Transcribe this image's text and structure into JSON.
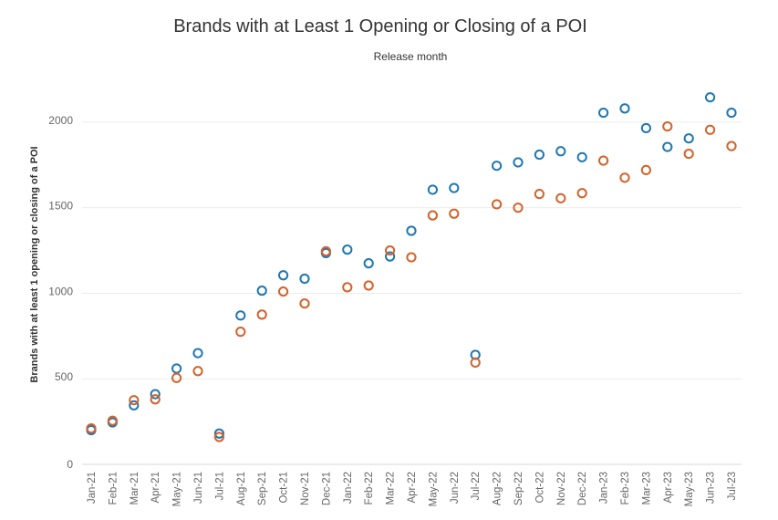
{
  "chart_data": {
    "type": "scatter",
    "title": "Brands with at Least 1 Opening or Closing of a POI",
    "subtitle": "Release month",
    "ylabel": "Brands with at least 1 opening or closing of a POI",
    "xlabel": "",
    "ylim": [
      0,
      2250
    ],
    "yticks": [
      0,
      500,
      1000,
      1500,
      2000
    ],
    "grid": true,
    "categories": [
      "Jan-21",
      "Feb-21",
      "Mar-21",
      "Apr-21",
      "May-21",
      "Jun-21",
      "Jul-21",
      "Aug-21",
      "Sep-21",
      "Oct-21",
      "Nov-21",
      "Dec-21",
      "Jan-22",
      "Feb-22",
      "Mar-22",
      "Apr-22",
      "May-22",
      "Jun-22",
      "Jul-22",
      "Aug-22",
      "Sep-22",
      "Oct-22",
      "Nov-22",
      "Dec-22",
      "Jan-23",
      "Feb-23",
      "Mar-23",
      "Apr-23",
      "May-23",
      "Jun-23",
      "Jul-23"
    ],
    "series": [
      {
        "color": "#1f77b4",
        "values": [
          200,
          245,
          345,
          410,
          560,
          650,
          180,
          870,
          1015,
          1105,
          1085,
          1235,
          1255,
          1175,
          1215,
          1365,
          1605,
          1615,
          640,
          1745,
          1765,
          1810,
          1830,
          1795,
          2055,
          2080,
          1965,
          1855,
          1905,
          2145,
          2055
        ]
      },
      {
        "color": "#d4622a",
        "values": [
          210,
          255,
          375,
          380,
          505,
          545,
          160,
          775,
          875,
          1010,
          940,
          1245,
          1035,
          1045,
          1250,
          1210,
          1455,
          1465,
          595,
          1520,
          1500,
          1580,
          1555,
          1585,
          1775,
          1675,
          1720,
          1975,
          1815,
          1955,
          1860
        ]
      }
    ]
  }
}
